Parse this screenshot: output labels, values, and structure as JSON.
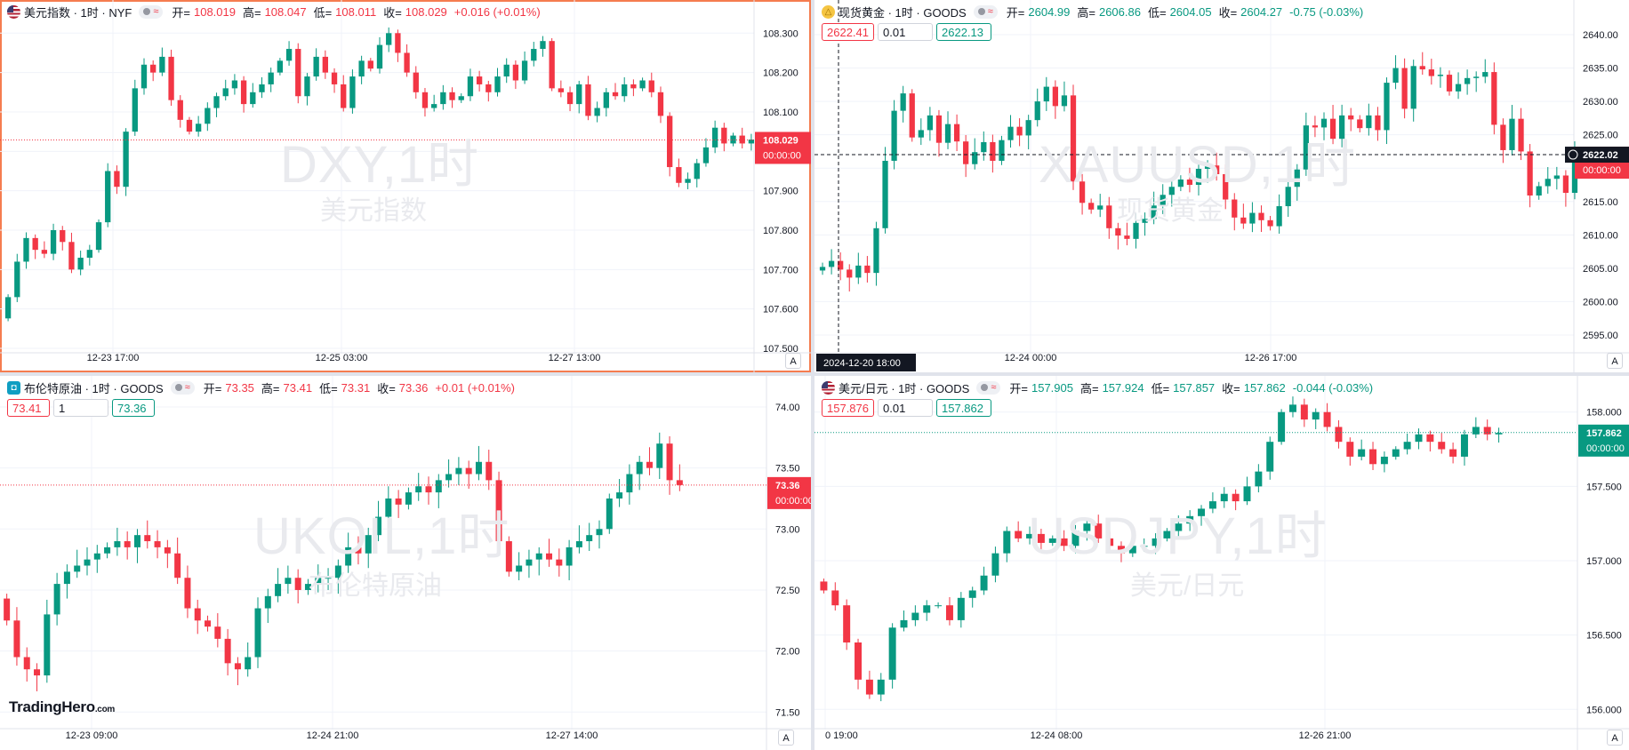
{
  "brand": {
    "name": "TradingHero",
    "suffix": ".com"
  },
  "colors": {
    "up": "#089981",
    "down": "#f23645",
    "active_border": "#f57c4f"
  },
  "panels": [
    {
      "symbol_name": "美元指数 · 1时 · NYF",
      "icon": "us-flag-icon",
      "ohlc": {
        "o_label": "开=",
        "o": "108.019",
        "h_label": "高=",
        "h": "108.047",
        "l_label": "低=",
        "l": "108.011",
        "c_label": "收=",
        "c": "108.029",
        "chg": "+0.016 (+0.01%)"
      },
      "direction": "down",
      "trade": null,
      "watermark": {
        "ticker": "DXY,1时",
        "desc": "美元指数"
      },
      "price_label": "108.029",
      "countdown": "00:00:00",
      "time_labels": [
        "12-23 17:00",
        "12-25 03:00",
        "12-27 13:00"
      ],
      "crosshair_time": "",
      "crosshair_price": "",
      "auto_btn": "A"
    },
    {
      "symbol_name": "现货黄金 · 1时 · GOODS",
      "icon": "gold-icon",
      "ohlc": {
        "o_label": "开=",
        "o": "2604.99",
        "h_label": "高=",
        "h": "2606.86",
        "l_label": "低=",
        "l": "2604.05",
        "c_label": "收=",
        "c": "2604.27",
        "chg": "-0.75 (-0.03%)"
      },
      "direction": "up",
      "trade": {
        "sell": "2622.41",
        "qty": "0.01",
        "buy": "2622.13"
      },
      "watermark": {
        "ticker": "XAUUSD,1时",
        "desc": "现货黄金"
      },
      "price_label": "2622.02",
      "countdown": "00:00:00",
      "time_labels": [
        "12-24 00:00",
        "12-26 17:00"
      ],
      "crosshair_time": "2024-12-20  18:00",
      "crosshair_price": "2622.02",
      "auto_btn": "A"
    },
    {
      "symbol_name": "布伦特原油 · 1时 · GOODS",
      "icon": "oil-icon",
      "ohlc": {
        "o_label": "开=",
        "o": "73.35",
        "h_label": "高=",
        "h": "73.41",
        "l_label": "低=",
        "l": "73.31",
        "c_label": "收=",
        "c": "73.36",
        "chg": "+0.01 (+0.01%)"
      },
      "direction": "down",
      "trade": {
        "sell": "73.41",
        "qty": "1",
        "buy": "73.36"
      },
      "watermark": {
        "ticker": "UKOIL,1时",
        "desc": "布伦特原油"
      },
      "price_label": "73.36",
      "countdown": "00:00:00",
      "time_labels": [
        "12-23 09:00",
        "12-24 21:00",
        "12-27 14:00"
      ],
      "crosshair_time": "",
      "crosshair_price": "",
      "auto_btn": "A"
    },
    {
      "symbol_name": "美元/日元 · 1时 · GOODS",
      "icon": "us-flag-icon",
      "ohlc": {
        "o_label": "开=",
        "o": "157.905",
        "h_label": "高=",
        "h": "157.924",
        "l_label": "低=",
        "l": "157.857",
        "c_label": "收=",
        "c": "157.862",
        "chg": "-0.044 (-0.03%)"
      },
      "direction": "up",
      "trade": {
        "sell": "157.876",
        "qty": "0.01",
        "buy": "157.862"
      },
      "watermark": {
        "ticker": "USDJPY,1时",
        "desc": "美元/日元"
      },
      "price_label": "157.862",
      "countdown": "00:00:00",
      "time_labels": [
        "0 19:00",
        "12-24 08:00",
        "12-26 21:00"
      ],
      "crosshair_time": "",
      "crosshair_price": "",
      "auto_btn": "A"
    }
  ],
  "chart_data": [
    {
      "type": "candlestick",
      "title": "美元指数 · 1时 · NYF",
      "ylim": [
        107.5,
        108.33
      ],
      "y_ticks": [
        107.5,
        107.6,
        107.7,
        107.8,
        107.9,
        108.0,
        108.1,
        108.2,
        108.3
      ],
      "y_tick_labels": [
        "107.500",
        "107.600",
        "107.700",
        "107.800",
        "107.900",
        "108.000",
        "108.100",
        "108.200",
        "108.300"
      ],
      "last_price": 108.029,
      "close": [
        107.63,
        107.72,
        107.78,
        107.75,
        107.74,
        107.8,
        107.77,
        107.7,
        107.73,
        107.75,
        107.82,
        107.95,
        107.91,
        108.05,
        108.16,
        108.22,
        108.2,
        108.24,
        108.13,
        108.08,
        108.05,
        108.07,
        108.11,
        108.14,
        108.16,
        108.18,
        108.12,
        108.15,
        108.17,
        108.2,
        108.23,
        108.26,
        108.14,
        108.19,
        108.24,
        108.2,
        108.17,
        108.11,
        108.19,
        108.23,
        108.21,
        108.27,
        108.3,
        108.25,
        108.2,
        108.15,
        108.11,
        108.12,
        108.15,
        108.13,
        108.14,
        108.19,
        108.17,
        108.15,
        108.19,
        108.22,
        108.18,
        108.23,
        108.26,
        108.28,
        108.16,
        108.15,
        108.12,
        108.17,
        108.09,
        108.11,
        108.15,
        108.14,
        108.17,
        108.16,
        108.18,
        108.15,
        108.09,
        107.96,
        107.92,
        107.93,
        107.97,
        108.01,
        108.06,
        108.02,
        108.04,
        108.02,
        108.03
      ]
    },
    {
      "type": "candlestick",
      "title": "现货黄金 · 1时 · GOODS",
      "ylim": [
        2593,
        2642
      ],
      "y_ticks": [
        2595,
        2600,
        2605,
        2610,
        2615,
        2620,
        2625,
        2630,
        2635,
        2640
      ],
      "y_tick_labels": [
        "2595.00",
        "2600.00",
        "2605.00",
        "2610.00",
        "2615.00",
        "2620.00",
        "2625.00",
        "2630.00",
        "2635.00",
        "2640.00"
      ],
      "last_price": 2622.02,
      "close": [
        2605.2,
        2606.1,
        2604.8,
        2603.6,
        2605.4,
        2604.3,
        2611.0,
        2621.1,
        2628.6,
        2631.2,
        2624.6,
        2625.7,
        2627.9,
        2623.8,
        2626.6,
        2624.0,
        2620.6,
        2622.4,
        2623.9,
        2621.1,
        2624.2,
        2626.2,
        2624.9,
        2627.2,
        2630.0,
        2632.2,
        2629.3,
        2630.9,
        2618.0,
        2614.8,
        2613.8,
        2614.4,
        2611.0,
        2609.9,
        2609.4,
        2611.8,
        2612.4,
        2614.4,
        2616.0,
        2617.2,
        2618.3,
        2617.5,
        2619.9,
        2620.4,
        2619.1,
        2615.3,
        2612.6,
        2611.7,
        2613.3,
        2612.2,
        2611.3,
        2614.3,
        2617.2,
        2619.8,
        2626.4,
        2626.1,
        2627.4,
        2624.4,
        2627.9,
        2627.3,
        2626.0,
        2627.9,
        2625.7,
        2632.8,
        2635.0,
        2628.9,
        2635.3,
        2634.8,
        2633.8,
        2634.0,
        2631.5,
        2632.6,
        2633.5,
        2633.7,
        2634.4,
        2626.5,
        2622.7,
        2627.4,
        2622.5,
        2615.9,
        2617.3,
        2618.4,
        2618.9,
        2616.3,
        2622.1
      ]
    },
    {
      "type": "candlestick",
      "title": "布伦特原油 · 1时 · GOODS",
      "ylim": [
        71.4,
        74.08
      ],
      "y_ticks": [
        71.5,
        72.0,
        72.5,
        73.0,
        73.5,
        74.0
      ],
      "y_tick_labels": [
        "71.50",
        "72.00",
        "72.50",
        "73.00",
        "73.50",
        "74.00"
      ],
      "last_price": 73.36,
      "close": [
        72.25,
        71.95,
        71.85,
        71.8,
        72.3,
        72.55,
        72.65,
        72.7,
        72.75,
        72.8,
        72.85,
        72.9,
        72.85,
        72.95,
        72.9,
        72.85,
        72.8,
        72.6,
        72.35,
        72.25,
        72.2,
        72.1,
        71.9,
        71.85,
        71.95,
        72.35,
        72.45,
        72.55,
        72.6,
        72.5,
        72.55,
        72.6,
        72.6,
        72.7,
        72.85,
        72.8,
        72.95,
        73.1,
        73.25,
        73.2,
        73.3,
        73.35,
        73.3,
        73.4,
        73.45,
        73.5,
        73.45,
        73.55,
        73.4,
        72.9,
        72.65,
        72.7,
        72.75,
        72.8,
        72.75,
        72.7,
        72.85,
        72.9,
        72.95,
        73.0,
        73.25,
        73.3,
        73.45,
        73.55,
        73.5,
        73.7,
        73.4,
        73.36
      ]
    },
    {
      "type": "candlestick",
      "title": "美元/日元 · 1时 · GOODS",
      "ylim": [
        155.9,
        158.1
      ],
      "y_ticks": [
        156.0,
        156.5,
        157.0,
        157.5,
        158.0
      ],
      "y_tick_labels": [
        "156.000",
        "156.500",
        "157.000",
        "157.500",
        "158.000"
      ],
      "last_price": 157.862,
      "close": [
        156.8,
        156.7,
        156.45,
        156.2,
        156.1,
        156.2,
        156.55,
        156.6,
        156.65,
        156.7,
        156.7,
        156.6,
        156.75,
        156.8,
        156.9,
        157.05,
        157.2,
        157.15,
        157.18,
        157.12,
        157.15,
        157.1,
        157.2,
        157.25,
        157.15,
        157.1,
        157.05,
        157.1,
        157.1,
        157.15,
        157.2,
        157.25,
        157.3,
        157.35,
        157.4,
        157.45,
        157.4,
        157.5,
        157.6,
        157.8,
        158.0,
        158.05,
        157.95,
        158.0,
        157.9,
        157.8,
        157.7,
        157.75,
        157.65,
        157.7,
        157.75,
        157.8,
        157.85,
        157.8,
        157.75,
        157.7,
        157.85,
        157.9,
        157.85,
        157.86
      ]
    }
  ]
}
